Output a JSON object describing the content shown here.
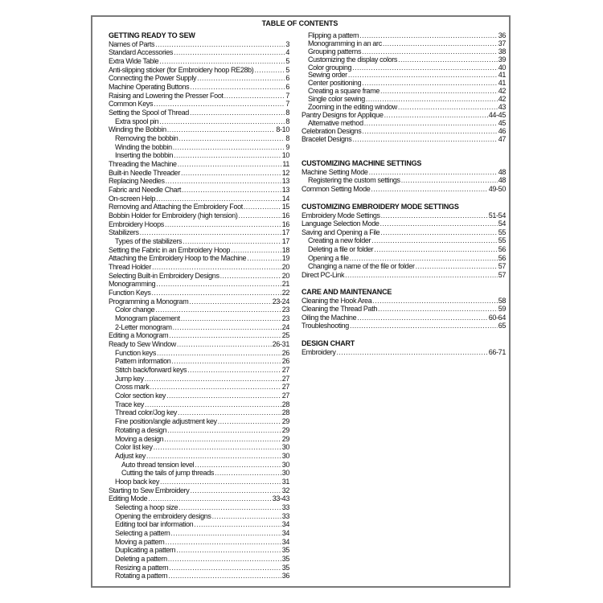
{
  "title": "TABLE OF CONTENTS",
  "left": {
    "heading": "GETTING READY TO SEW",
    "items": [
      {
        "text": "Names of Parts",
        "page": "3",
        "level": 0
      },
      {
        "text": "Standard Accessories",
        "page": "4",
        "level": 0
      },
      {
        "text": "Extra Wide Table",
        "page": "5",
        "level": 0
      },
      {
        "text": "Anti-slipping sticker (for Embroidery hoop RE28b)",
        "page": "5",
        "level": 0
      },
      {
        "text": "Connecting the Power Supply",
        "page": "6",
        "level": 0
      },
      {
        "text": "Machine Operating Buttons",
        "page": "6",
        "level": 0
      },
      {
        "text": "Raising and Lowering the Presser Foot",
        "page": "7",
        "level": 0
      },
      {
        "text": "Common Keys",
        "page": "7",
        "level": 0
      },
      {
        "text": "Setting the Spool of Thread",
        "page": "8",
        "level": 0
      },
      {
        "text": "Extra spool pin",
        "page": "8",
        "level": 1
      },
      {
        "text": "Winding the Bobbin",
        "page": "8-10",
        "level": 0
      },
      {
        "text": "Removing the bobbin",
        "page": "8",
        "level": 1
      },
      {
        "text": "Winding the bobbin",
        "page": "9",
        "level": 1
      },
      {
        "text": "Inserting the bobbin",
        "page": "10",
        "level": 1
      },
      {
        "text": "Threading the Machine",
        "page": "11",
        "level": 0
      },
      {
        "text": "Built-in Needle Threader",
        "page": "12",
        "level": 0
      },
      {
        "text": "Replacing Needles",
        "page": "13",
        "level": 0
      },
      {
        "text": "Fabric and Needle Chart",
        "page": "13",
        "level": 0
      },
      {
        "text": "On-screen Help",
        "page": "14",
        "level": 0
      },
      {
        "text": "Removing and Attaching the Embroidery Foot",
        "page": "15",
        "level": 0
      },
      {
        "text": "Bobbin Holder for Embroidery (high tension)",
        "page": "16",
        "level": 0
      },
      {
        "text": "Embroidery Hoops",
        "page": "16",
        "level": 0
      },
      {
        "text": "Stabilizers",
        "page": "17",
        "level": 0
      },
      {
        "text": "Types of the stabilizers",
        "page": "17",
        "level": 1
      },
      {
        "text": "Setting the Fabric in an Embroidery Hoop",
        "page": "18",
        "level": 0
      },
      {
        "text": "Attaching the Embroidery Hoop to the Machine",
        "page": "19",
        "level": 0
      },
      {
        "text": "Thread Holder",
        "page": "20",
        "level": 0
      },
      {
        "text": "Selecting Built-in Embroidery Designs",
        "page": "20",
        "level": 0
      },
      {
        "text": "Monogramming",
        "page": "21",
        "level": 0
      },
      {
        "text": "Function Keys",
        "page": "22",
        "level": 0
      },
      {
        "text": "Programming a Monogram",
        "page": "23-24",
        "level": 0
      },
      {
        "text": "Color change",
        "page": "23",
        "level": 1
      },
      {
        "text": "Monogram placement",
        "page": "23",
        "level": 1
      },
      {
        "text": "2-Letter monogram",
        "page": "24",
        "level": 1
      },
      {
        "text": "Editing a Monogram",
        "page": "25",
        "level": 0
      },
      {
        "text": "Ready to Sew Window",
        "page": "26-31",
        "level": 0
      },
      {
        "text": "Function keys",
        "page": "26",
        "level": 1
      },
      {
        "text": "Pattern information",
        "page": "26",
        "level": 1
      },
      {
        "text": "Stitch back/forward keys",
        "page": "27",
        "level": 1
      },
      {
        "text": "Jump key",
        "page": "27",
        "level": 1
      },
      {
        "text": "Cross mark",
        "page": "27",
        "level": 1
      },
      {
        "text": "Color section key",
        "page": "27",
        "level": 1
      },
      {
        "text": "Trace key",
        "page": "28",
        "level": 1
      },
      {
        "text": "Thread color/Jog key",
        "page": "28",
        "level": 1
      },
      {
        "text": "Fine position/angle adjustment key",
        "page": "29",
        "level": 1
      },
      {
        "text": "Rotating a design",
        "page": "29",
        "level": 1
      },
      {
        "text": "Moving a design",
        "page": "29",
        "level": 1
      },
      {
        "text": "Color list key",
        "page": "30",
        "level": 1
      },
      {
        "text": "Adjust key",
        "page": "30",
        "level": 1
      },
      {
        "text": "Auto thread tension level",
        "page": "30",
        "level": 2
      },
      {
        "text": "Cutting the tails of jump threads",
        "page": "30",
        "level": 2
      },
      {
        "text": "Hoop back key",
        "page": "31",
        "level": 1
      },
      {
        "text": "Starting to Sew Embroidery",
        "page": "32",
        "level": 0
      },
      {
        "text": "Editing Mode",
        "page": "33-43",
        "level": 0
      },
      {
        "text": "Selecting a hoop size",
        "page": "33",
        "level": 1
      },
      {
        "text": "Opening the embroidery designs",
        "page": "33",
        "level": 1
      },
      {
        "text": "Editing tool bar information",
        "page": "34",
        "level": 1
      },
      {
        "text": "Selecting a pattern",
        "page": "34",
        "level": 1
      },
      {
        "text": "Moving a pattern",
        "page": "34",
        "level": 1
      },
      {
        "text": "Duplicating a pattern",
        "page": "35",
        "level": 1
      },
      {
        "text": "Deleting a pattern",
        "page": "35",
        "level": 1
      },
      {
        "text": "Resizing a pattern",
        "page": "35",
        "level": 1
      },
      {
        "text": "Rotating a pattern",
        "page": "36",
        "level": 1
      }
    ]
  },
  "right": {
    "continued": [
      {
        "text": "Flipping a pattern",
        "page": "36",
        "level": 1
      },
      {
        "text": "Monogramming in an arc",
        "page": "37",
        "level": 1
      },
      {
        "text": "Grouping patterns",
        "page": "38",
        "level": 1
      },
      {
        "text": "Customizing the display colors",
        "page": "39",
        "level": 1
      },
      {
        "text": "Color grouping",
        "page": "40",
        "level": 1
      },
      {
        "text": "Sewing order",
        "page": "41",
        "level": 1
      },
      {
        "text": "Center positioning",
        "page": "41",
        "level": 1
      },
      {
        "text": "Creating a square frame",
        "page": "42",
        "level": 1
      },
      {
        "text": "Single color sewing",
        "page": "42",
        "level": 1
      },
      {
        "text": "Zooming in the editing window",
        "page": "43",
        "level": 1
      },
      {
        "text": "Pantry Designs for Applique",
        "page": "44-45",
        "level": 0
      },
      {
        "text": "Alternative method",
        "page": "45",
        "level": 1
      },
      {
        "text": "Celebration Designs",
        "page": "46",
        "level": 0
      },
      {
        "text": "Bracelet Designs",
        "page": "47",
        "level": 0
      }
    ],
    "sections": [
      {
        "heading": "CUSTOMIZING MACHINE SETTINGS",
        "items": [
          {
            "text": "Machine Setting Mode",
            "page": "48",
            "level": 0
          },
          {
            "text": "Registering the custom settings",
            "page": "48",
            "level": 1
          },
          {
            "text": "Common Setting Mode",
            "page": "49-50",
            "level": 0
          }
        ]
      },
      {
        "heading": "CUSTOMIZING EMBROIDERY MODE SETTINGS",
        "items": [
          {
            "text": "Embroidery Mode Settings",
            "page": "51-54",
            "level": 0
          },
          {
            "text": "Language Selection Mode",
            "page": "54",
            "level": 0
          },
          {
            "text": "Saving and Opening a File",
            "page": "55",
            "level": 0
          },
          {
            "text": "Creating a new folder",
            "page": "55",
            "level": 1
          },
          {
            "text": "Deleting a file or folder",
            "page": "56",
            "level": 1
          },
          {
            "text": "Opening a file",
            "page": "56",
            "level": 1
          },
          {
            "text": "Changing a name of the file or folder",
            "page": "57",
            "level": 1
          },
          {
            "text": "Direct PC-Link",
            "page": "57",
            "level": 0
          }
        ]
      },
      {
        "heading": "CARE AND MAINTENANCE",
        "items": [
          {
            "text": "Cleaning the Hook Area",
            "page": "58",
            "level": 0
          },
          {
            "text": "Cleaning the Thread Path",
            "page": "59",
            "level": 0
          },
          {
            "text": "Oiling the Machine",
            "page": "60-64",
            "level": 0
          },
          {
            "text": "Troubleshooting",
            "page": "65",
            "level": 0
          }
        ]
      },
      {
        "heading": "DESIGN CHART",
        "items": [
          {
            "text": "Embroidery",
            "page": "66-71",
            "level": 0
          }
        ]
      }
    ]
  }
}
